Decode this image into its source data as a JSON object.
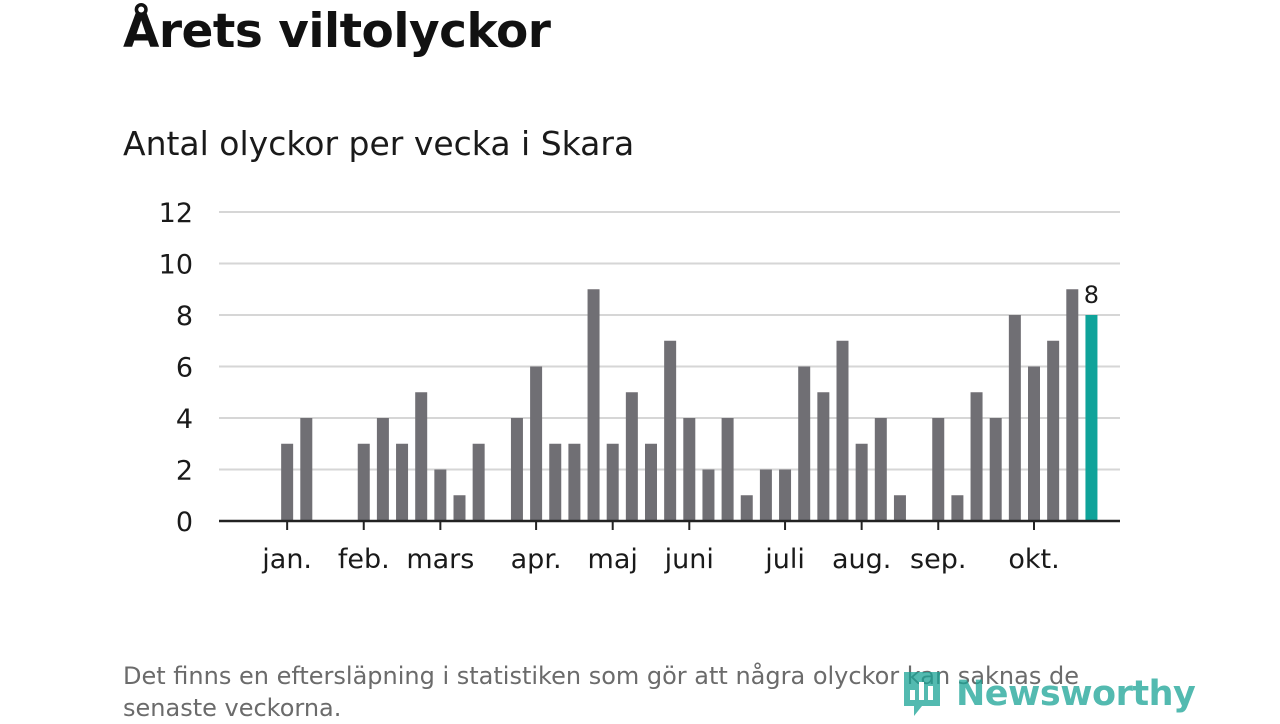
{
  "header": {
    "title": "Årets viltolyckor",
    "subtitle": "Antal olyckor per vecka i Skara"
  },
  "footnote": "Det finns en eftersläpning i statistiken som gör att några olyckor kan saknas de senaste veckorna.",
  "logo": {
    "text": "Newsworthy",
    "icon": "newsworthy-logo-icon"
  },
  "colors": {
    "bar": "#706f74",
    "highlight": "#0fa39a",
    "grid": "#d6d6d6",
    "axis": "#222222",
    "text": "#1a1a1a",
    "logo": "#1aa396"
  },
  "chart_data": {
    "type": "bar",
    "title": "Antal olyckor per vecka i Skara",
    "xlabel": "",
    "ylabel": "",
    "ylim": [
      0,
      12
    ],
    "yticks": [
      0,
      2,
      4,
      6,
      8,
      10,
      12
    ],
    "grid": true,
    "legend": "none",
    "x_month_labels": [
      {
        "label": "jan.",
        "week": 2
      },
      {
        "label": "feb.",
        "week": 6
      },
      {
        "label": "mars",
        "week": 10
      },
      {
        "label": "apr.",
        "week": 15
      },
      {
        "label": "maj",
        "week": 19
      },
      {
        "label": "juni",
        "week": 23
      },
      {
        "label": "juli",
        "week": 28
      },
      {
        "label": "aug.",
        "week": 32
      },
      {
        "label": "sep.",
        "week": 36
      },
      {
        "label": "okt.",
        "week": 41
      }
    ],
    "weeks": [
      1,
      2,
      3,
      4,
      5,
      6,
      7,
      8,
      9,
      10,
      11,
      12,
      13,
      14,
      15,
      16,
      17,
      18,
      19,
      20,
      21,
      22,
      23,
      24,
      25,
      26,
      27,
      28,
      29,
      30,
      31,
      32,
      33,
      34,
      35,
      36,
      37,
      38,
      39,
      40,
      41,
      42,
      43,
      44
    ],
    "values": [
      0,
      3,
      4,
      0,
      0,
      3,
      4,
      3,
      5,
      2,
      1,
      3,
      0,
      4,
      6,
      3,
      3,
      9,
      3,
      5,
      3,
      7,
      4,
      2,
      4,
      1,
      2,
      2,
      6,
      5,
      7,
      3,
      4,
      1,
      0,
      4,
      1,
      5,
      4,
      8,
      6,
      7,
      9,
      8
    ],
    "highlight_index": 43,
    "highlight_label": "8"
  }
}
